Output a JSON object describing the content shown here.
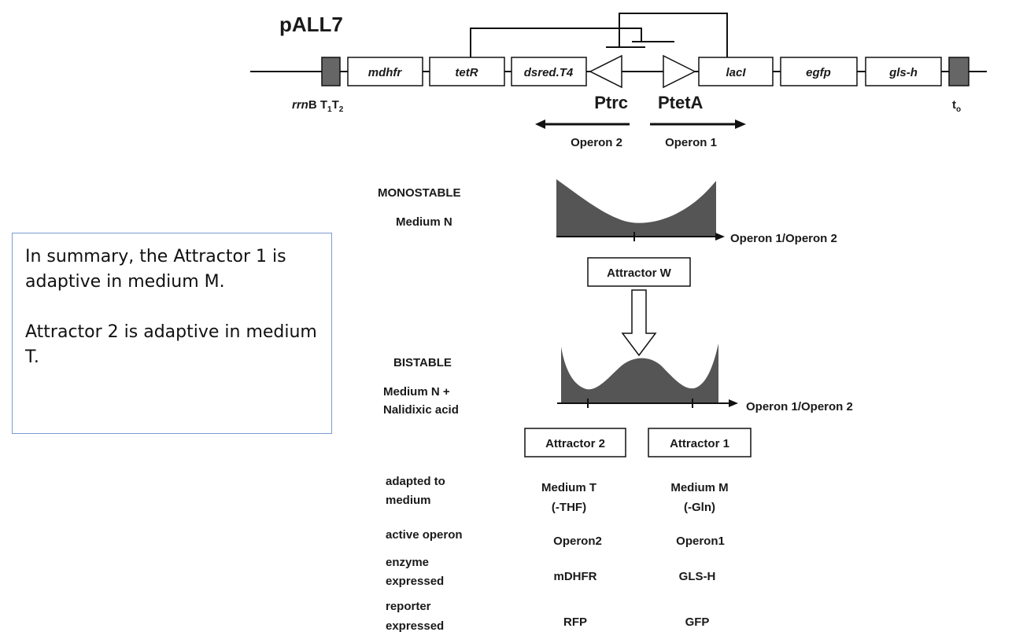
{
  "plasmid": {
    "name": "pALL7",
    "genes": [
      "mdhfr",
      "tetR",
      "dsred.T4",
      "lacI",
      "egfp",
      "gls-h"
    ],
    "terminator_left": "rrnB T1T2",
    "terminator_right": "t0",
    "promoters": [
      "Ptrc",
      "PtetA"
    ],
    "operons": [
      "Operon 2",
      "Operon 1"
    ]
  },
  "landscape": {
    "monostable_title": "MONOSTABLE",
    "monostable_medium": "Medium N",
    "axis_label": "Operon 1/Operon 2",
    "attractor_w": "Attractor W",
    "bistable_title": "BISTABLE",
    "bistable_medium_1": "Medium N +",
    "bistable_medium_2": "Nalidixic acid",
    "attractor_2": "Attractor 2",
    "attractor_1": "Attractor 1"
  },
  "table": {
    "rows": [
      {
        "label": [
          "adapted to",
          "medium"
        ],
        "a2": [
          "Medium T",
          "(-THF)"
        ],
        "a1": [
          "Medium M",
          "(-Gln)"
        ]
      },
      {
        "label": [
          "active operon"
        ],
        "a2": [
          "Operon2"
        ],
        "a1": [
          "Operon1"
        ]
      },
      {
        "label": [
          "enzyme",
          "expressed"
        ],
        "a2": [
          "mDHFR"
        ],
        "a1": [
          "GLS-H"
        ]
      },
      {
        "label": [
          "reporter",
          "expressed"
        ],
        "a2": [
          "RFP"
        ],
        "a1": [
          "GFP"
        ]
      }
    ]
  },
  "summary": {
    "line1": "In summary, the Attractor 1 is adaptive in medium  M.",
    "line2": "Attractor 2 is adaptive in medium  T."
  },
  "colors": {
    "fill_dark": "#555555",
    "box_border": "#7b9bd1"
  }
}
